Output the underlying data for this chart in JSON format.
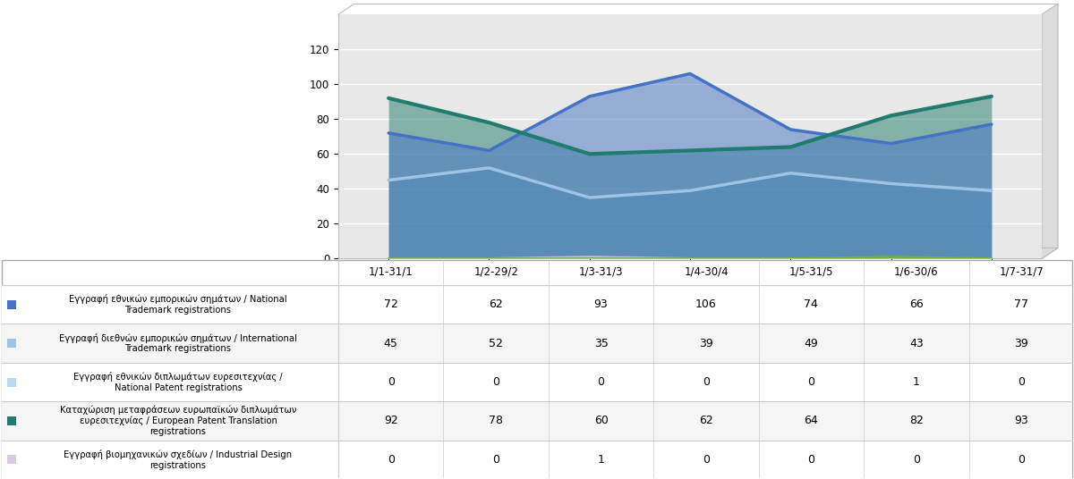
{
  "categories": [
    "1/1-31/1",
    "1/2-29/2",
    "1/3-31/3",
    "1/4-30/4",
    "1/5-31/5",
    "1/6-30/6",
    "1/7-31/7"
  ],
  "series": [
    {
      "label": "Εγγραφή εθνικών εμπορικών σημάτων / National\nTrademark registrations",
      "values": [
        72,
        62,
        93,
        106,
        74,
        66,
        77
      ],
      "color": "#4472C4",
      "linewidth": 2.5,
      "zorder": 6
    },
    {
      "label": "Εγγραφή διεθνών εμπορικών σημάτων / International\nTrademark registrations",
      "values": [
        45,
        52,
        35,
        39,
        49,
        43,
        39
      ],
      "color": "#9DC3E6",
      "linewidth": 2.5,
      "zorder": 5
    },
    {
      "label": "Εγγραφή εθνικών διπλωμάτων ευρεσιτεχνίας /\nNational Patent registrations",
      "values": [
        0,
        0,
        0,
        0,
        0,
        1,
        0
      ],
      "color": "#70AD47",
      "linewidth": 2.0,
      "zorder": 4
    },
    {
      "label": "Καταχώριση μεταφράσεων ευρωπαϊκών διπλωμάτων\nευρεσιτεχνίας / European Patent Translation\nregistrations",
      "values": [
        92,
        78,
        60,
        62,
        64,
        82,
        93
      ],
      "color": "#1F7C6E",
      "linewidth": 3.0,
      "zorder": 7
    },
    {
      "label": "Εγγραφή βιομηχανικών σχεδίων / Industrial Design\nregistrations",
      "values": [
        0,
        0,
        1,
        0,
        0,
        0,
        0
      ],
      "color": "#C9B8D8",
      "linewidth": 2.0,
      "zorder": 3
    }
  ],
  "ylim": [
    0,
    140
  ],
  "yticks": [
    0,
    20,
    40,
    60,
    80,
    100,
    120
  ],
  "legend_colors": [
    "#4472C4",
    "#9DC3E6",
    "#B8D9F0",
    "#1F7C6E",
    "#D9C9E8"
  ],
  "legend_labels": [
    "Εγγραφή εθνικών εμπορικών σημάτων / National\nTrademark registrations",
    "Εγγραφή διεθνών εμπορικών σημάτων / International\nTrademark registrations",
    "Εγγραφή εθνικών διπλωμάτων ευρεσιτεχνίας /\nNational Patent registrations",
    "Καταχώριση μεταφράσεων ευρωπαϊκών διπλωμάτων\nευρεσιτεχνίας / European Patent Translation\nregistrations",
    "Εγγραφή βιομηχανικών σχεδίων / Industrial Design\nregistrations"
  ],
  "table_data": [
    [
      72,
      62,
      93,
      106,
      74,
      66,
      77
    ],
    [
      45,
      52,
      35,
      39,
      49,
      43,
      39
    ],
    [
      0,
      0,
      0,
      0,
      0,
      1,
      0
    ],
    [
      92,
      78,
      60,
      62,
      64,
      82,
      93
    ],
    [
      0,
      0,
      1,
      0,
      0,
      0,
      0
    ]
  ],
  "bg_color": "#FFFFFF",
  "chart_face_color": "#E8E8E8",
  "perspective_color": "#D0D0D0",
  "grid_color": "#FFFFFF",
  "table_border_color": "#AAAAAA",
  "table_line_color": "#CCCCCC"
}
